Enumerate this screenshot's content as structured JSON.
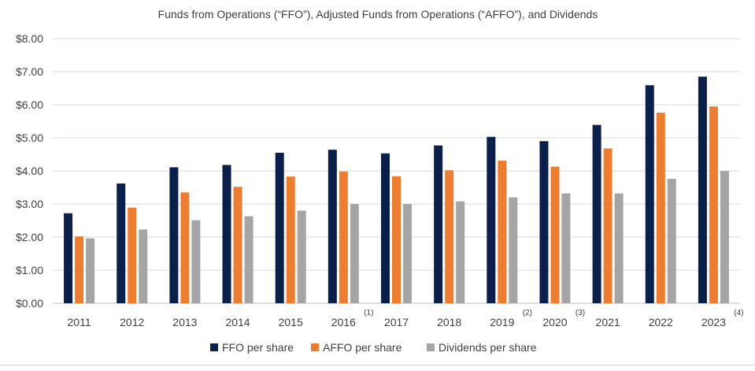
{
  "chart_data": {
    "type": "bar",
    "title": "Funds from Operations (“FFO”), Adjusted Funds from Operations (“AFFO”), and Dividends",
    "xlabel": "",
    "ylabel": "",
    "categories": [
      "2011",
      "2012",
      "2013",
      "2014",
      "2015",
      "2016",
      "2017",
      "2018",
      "2019",
      "2020",
      "2021",
      "2022",
      "2023"
    ],
    "footnotes": [
      "",
      "",
      "",
      "",
      "",
      "(1)",
      "",
      "",
      "(2)",
      "(3)",
      "",
      "",
      "(4)"
    ],
    "series": [
      {
        "name": "FFO per share",
        "color": "#0b1f4b",
        "values": [
          2.72,
          3.62,
          4.11,
          4.18,
          4.55,
          4.64,
          4.53,
          4.77,
          5.03,
          4.9,
          5.39,
          6.59,
          6.85
        ]
      },
      {
        "name": "AFFO per share",
        "color": "#ed7d31",
        "values": [
          2.02,
          2.89,
          3.35,
          3.52,
          3.83,
          3.98,
          3.84,
          4.02,
          4.31,
          4.13,
          4.68,
          5.76,
          5.95
        ]
      },
      {
        "name": "Dividends per share",
        "color": "#a5a5a5",
        "values": [
          1.96,
          2.23,
          2.51,
          2.63,
          2.8,
          3.0,
          3.0,
          3.08,
          3.2,
          3.32,
          3.32,
          3.76,
          4.0
        ]
      }
    ],
    "ylim": [
      0,
      8
    ],
    "yticks": [
      0,
      1,
      2,
      3,
      4,
      5,
      6,
      7,
      8
    ],
    "ytick_labels": [
      "$0.00",
      "$1.00",
      "$2.00",
      "$3.00",
      "$4.00",
      "$5.00",
      "$6.00",
      "$7.00",
      "$8.00"
    ],
    "grid": true,
    "legend_position": "bottom"
  }
}
